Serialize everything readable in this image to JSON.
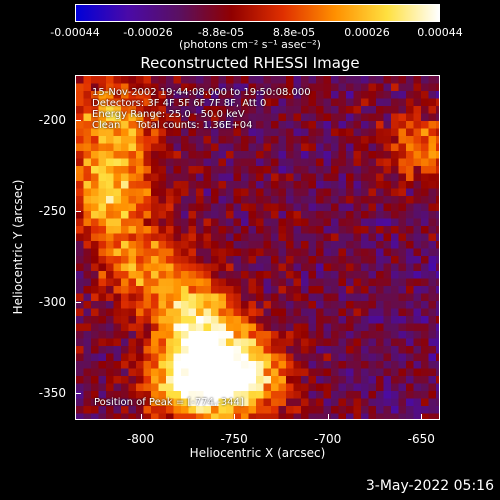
{
  "colorbar": {
    "ticks": [
      "-0.00044",
      "-0.00026",
      "-8.8e-05",
      "8.8e-05",
      "0.00026",
      "0.00044"
    ],
    "units_text": "(photons cm",
    "units_full": "(photons cm⁻² s⁻¹ asec⁻²)",
    "colors": [
      "#0000d8",
      "#4a0aa8",
      "#5a1060",
      "#900000",
      "#e03000",
      "#ff9000",
      "#ffe040",
      "#ffffff"
    ]
  },
  "chart_data": {
    "type": "heatmap",
    "title": "Reconstructed RHESSI Image",
    "xlabel": "Heliocentric X (arcsec)",
    "ylabel": "Heliocentric Y (arcsec)",
    "xlim": [
      -835,
      -640
    ],
    "ylim": [
      -365,
      -175
    ],
    "xticks": [
      -800,
      -750,
      -700,
      -650
    ],
    "yticks": [
      -200,
      -250,
      -300,
      -350
    ],
    "color_range": [
      -0.00044,
      0.00044
    ],
    "annotations": [
      "15-Nov-2002 19:44:08.000 to 19:50:08.000",
      "Detectors: 3F 4F 5F 6F 7F 8F, Att 0",
      "Energy Range: 25.0 - 50.0 keV",
      "Clean     Total counts: 1.36E+04"
    ],
    "peak_label": "Position of Peak = [-774,-344]",
    "peak": [
      -774,
      -344
    ],
    "bright_regions": [
      {
        "x": -774,
        "y": -344,
        "level": 1.0
      },
      {
        "x": -745,
        "y": -340,
        "level": 0.95
      },
      {
        "x": -770,
        "y": -310,
        "level": 0.85
      },
      {
        "x": -818,
        "y": -240,
        "level": 0.8
      },
      {
        "x": -815,
        "y": -200,
        "level": 0.7
      },
      {
        "x": -800,
        "y": -280,
        "level": 0.6
      },
      {
        "x": -650,
        "y": -215,
        "level": 0.55
      }
    ]
  },
  "footer": {
    "date": "3-May-2022 05:16"
  }
}
